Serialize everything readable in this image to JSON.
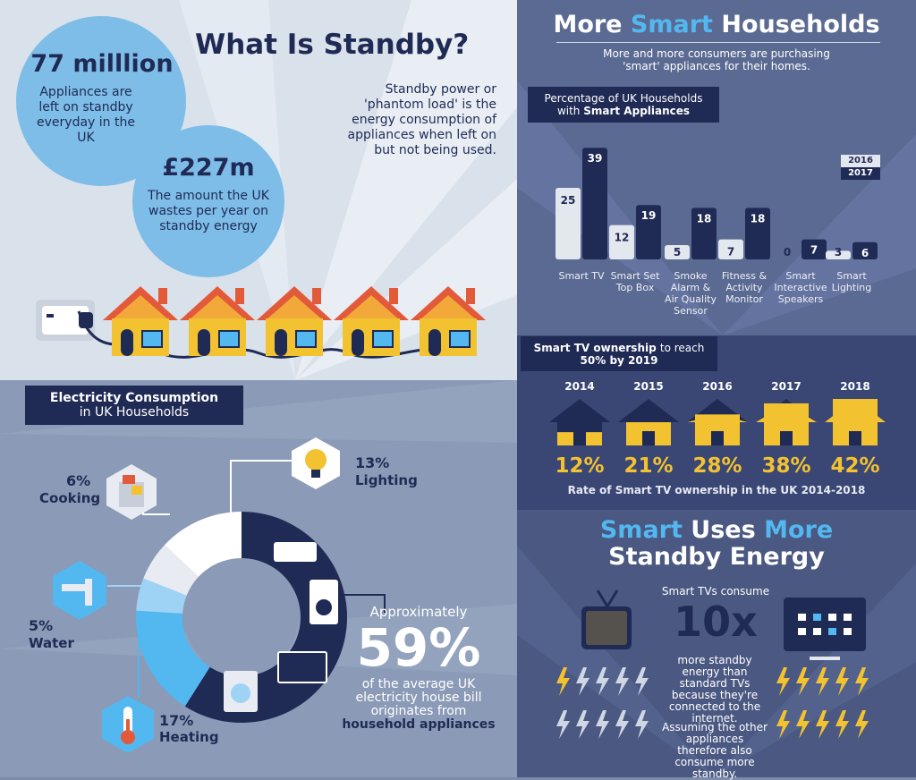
{
  "standby": {
    "title": "What Is Standby?",
    "stat1_value": "77 milllion",
    "stat1_desc": "Appliances are left on standby everyday in the UK",
    "stat2_value": "£227m",
    "stat2_desc": "The amount the UK wastes per year on standby energy",
    "definition": "Standby power or 'phantom load' is the energy consumption of appliances when left on but not being used."
  },
  "smart_households": {
    "title_part1": "More",
    "title_part2": "Smart",
    "title_part3": "Households",
    "subtitle": "More and more consumers are purchasing 'smart' appliances for their homes.",
    "chart_label_line1": "Percentage of UK Households",
    "chart_label_line2_pre": "with",
    "chart_label_line2_bold": "Smart Appliances",
    "legend": [
      "2016",
      "2017"
    ]
  },
  "tv_ownership": {
    "label_line1_bold": "Smart TV ownership",
    "label_line1_rest": "to reach",
    "label_line2": "50% by 2019",
    "caption": "Rate of Smart TV ownership in the UK 2014-2018"
  },
  "electricity": {
    "label_line1": "Electricity Consumption",
    "label_line2": "in UK Households",
    "approx": "Approximately",
    "big_pct": "59%",
    "desc": "of the average UK electricity house bill originates from",
    "desc_bold": "household appliances"
  },
  "smart_uses": {
    "title_line1_a": "Smart",
    "title_line1_b": "Uses",
    "title_line1_c": "More",
    "title_line2": "Standby Energy",
    "consume": "Smart TVs consume",
    "multiplier": "10x",
    "desc1": "more standby energy than standard TVs because they're connected to the internet.",
    "desc2": "Assuming the other appliances therefore also consume more standby."
  },
  "colors": {
    "navy": "#1f2a55",
    "light_blue": "#53b7f0",
    "yellow": "#f2c230",
    "grey_bar": "#e3e7ee"
  },
  "chart_data": [
    {
      "type": "bar",
      "title": "Percentage of UK Households with Smart Appliances",
      "categories": [
        "Smart TV",
        "Smart Set Top Box",
        "Smoke Alarm & Air Quality Sensor",
        "Fitness & Activity Monitor",
        "Smart Interactive Speakers",
        "Smart Lighting"
      ],
      "category_lines": [
        [
          "Smart TV"
        ],
        [
          "Smart Set",
          "Top Box"
        ],
        [
          "Smoke",
          "Alarm &",
          "Air Quality",
          "Sensor"
        ],
        [
          "Fitness &",
          "Activity",
          "Monitor"
        ],
        [
          "Smart",
          "Interactive",
          "Speakers"
        ],
        [
          "Smart",
          "Lighting"
        ]
      ],
      "series": [
        {
          "name": "2016",
          "values": [
            25,
            12,
            5,
            7,
            0,
            3
          ]
        },
        {
          "name": "2017",
          "values": [
            39,
            19,
            18,
            18,
            7,
            6
          ]
        }
      ],
      "ylim": [
        0,
        40
      ],
      "legend": "top-right"
    },
    {
      "type": "bar",
      "title": "Rate of Smart TV ownership in the UK 2014-2018",
      "categories": [
        "2014",
        "2015",
        "2016",
        "2017",
        "2018"
      ],
      "values": [
        12,
        21,
        28,
        38,
        42
      ],
      "value_labels": [
        "12%",
        "21%",
        "28%",
        "38%",
        "42%"
      ]
    },
    {
      "type": "pie",
      "title": "Electricity Consumption in UK Households",
      "slices": [
        {
          "name": "Household appliances",
          "value": 59,
          "color": "#1f2a55"
        },
        {
          "name": "Heating",
          "label": "17%",
          "value": 17,
          "color": "#53b7f0"
        },
        {
          "name": "Water",
          "label": "5%",
          "value": 5,
          "color": "#9fd3f5"
        },
        {
          "name": "Cooking",
          "label": "6%",
          "value": 6,
          "color": "#e8ecf2"
        },
        {
          "name": "Lighting",
          "label": "13%",
          "value": 13,
          "color": "#ffffff"
        }
      ]
    }
  ]
}
